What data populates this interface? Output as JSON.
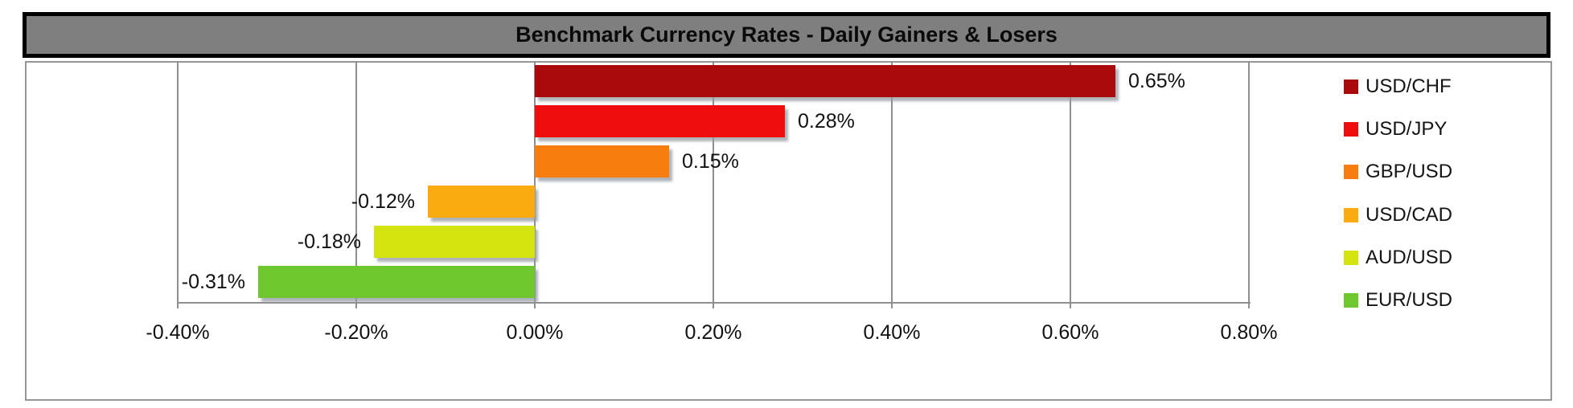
{
  "title": "Benchmark Currency Rates - Daily Gainers & Losers",
  "chart_data": {
    "type": "bar",
    "orientation": "horizontal",
    "title": "Benchmark Currency Rates - Daily Gainers & Losers",
    "categories": [
      "USD/CHF",
      "USD/JPY",
      "GBP/USD",
      "USD/CAD",
      "AUD/USD",
      "EUR/USD"
    ],
    "values": [
      0.65,
      0.28,
      0.15,
      -0.12,
      -0.18,
      -0.31
    ],
    "value_labels": [
      "0.65%",
      "0.28%",
      "0.15%",
      "-0.12%",
      "-0.18%",
      "-0.31%"
    ],
    "series_colors": [
      "#ab0a0c",
      "#ee0c0c",
      "#f67d0e",
      "#f9ab10",
      "#d4e40e",
      "#6fc72e"
    ],
    "x_ticks": [
      {
        "value": -0.4,
        "label": "-0.40%"
      },
      {
        "value": -0.2,
        "label": "-0.20%"
      },
      {
        "value": 0.0,
        "label": "0.00%"
      },
      {
        "value": 0.2,
        "label": "0.20%"
      },
      {
        "value": 0.4,
        "label": "0.40%"
      },
      {
        "value": 0.6,
        "label": "0.60%"
      },
      {
        "value": 0.8,
        "label": "0.80%"
      }
    ],
    "xlim": [
      -0.4,
      0.8
    ],
    "xlabel": "",
    "ylabel": "",
    "grid": true,
    "data_label_position": "outside-end",
    "legend_position": "right"
  },
  "styles": {
    "title_bg": "#7f7f7f",
    "title_border": "#000000",
    "grid_color": "#8f8f8f",
    "text_color": "#111111"
  }
}
